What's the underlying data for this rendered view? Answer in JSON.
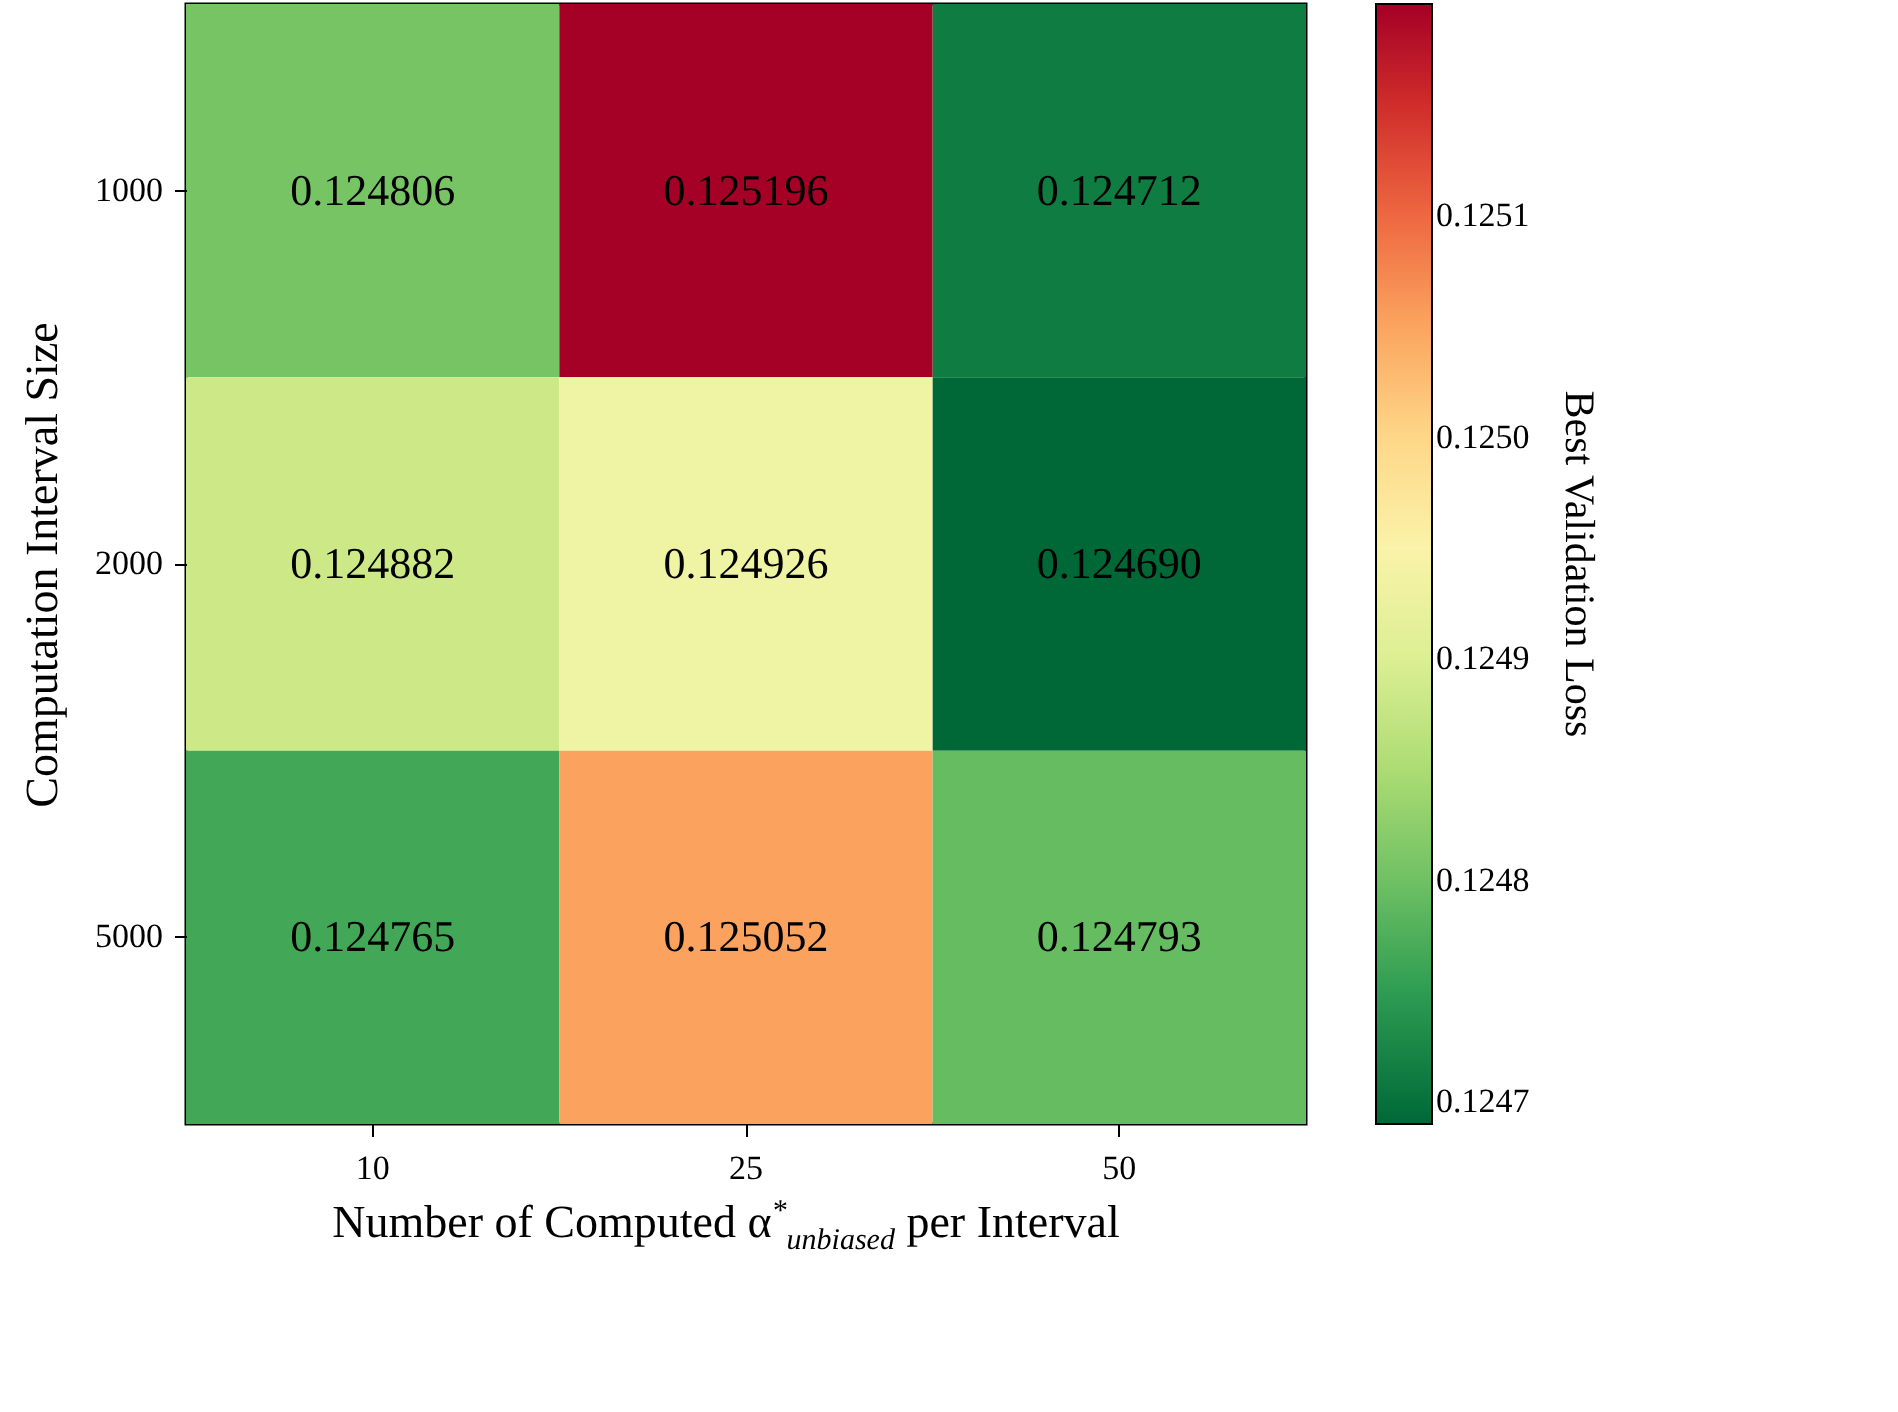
{
  "chart_data": {
    "type": "heatmap",
    "xlabel": "Number of Computed α$^{*}$$_{unbiased}$ per Interval",
    "ylabel": "Computation Interval Size",
    "clabel": "Best Validation Loss",
    "categories": [
      "10",
      "25",
      "50"
    ],
    "y_categories": [
      "1000",
      "2000",
      "5000"
    ],
    "cells": [
      [
        0.124806,
        0.125196,
        0.124712
      ],
      [
        0.124882,
        0.124926,
        0.12469
      ],
      [
        0.124765,
        0.125052,
        0.124793
      ]
    ],
    "cell_labels": [
      [
        "0.124806",
        "0.125196",
        "0.124712"
      ],
      [
        "0.124882",
        "0.124926",
        "0.124690"
      ],
      [
        "0.124765",
        "0.125052",
        "0.124793"
      ]
    ],
    "clim": [
      0.12469,
      0.125196
    ],
    "cticks": [
      {
        "value": 0.1247,
        "label": "0.1247"
      },
      {
        "value": 0.1248,
        "label": "0.1248"
      },
      {
        "value": 0.1249,
        "label": "0.1249"
      },
      {
        "value": 0.125,
        "label": "0.1250"
      },
      {
        "value": 0.1251,
        "label": "0.1251"
      }
    ],
    "data_labels": true
  }
}
